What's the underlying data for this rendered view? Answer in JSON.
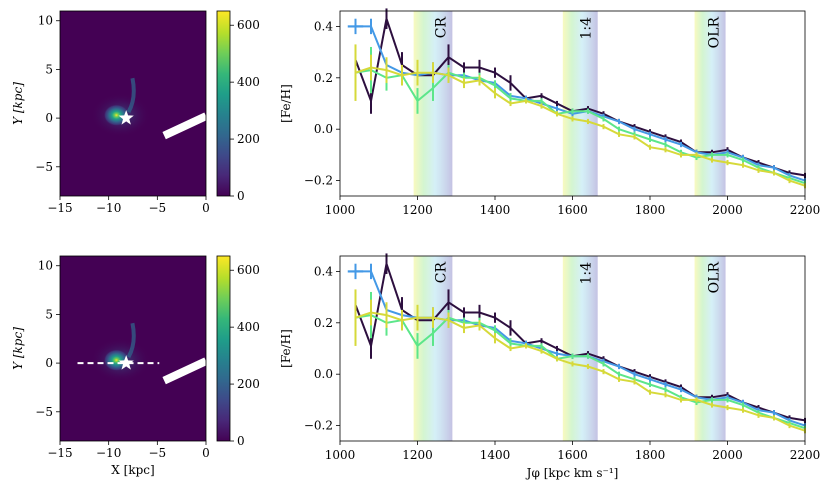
{
  "colors": {
    "viridis": [
      "#440154",
      "#482878",
      "#3e4989",
      "#31688e",
      "#26828e",
      "#1f9e89",
      "#35b779",
      "#6ece58",
      "#b5de2b",
      "#fde725"
    ],
    "background_map": "#440154",
    "bar": "#ffffff",
    "line_dark": "#2d0f3f",
    "line_blue": "#4499e6",
    "line_green": "#5ce68a",
    "line_yellow": "#d6d93a"
  },
  "chart_data": [
    {
      "type": "heatmap",
      "name": "map-top",
      "xlabel": "",
      "ylabel": "Y [kpc]",
      "xlim": [
        -15,
        0
      ],
      "ylim": [
        -8,
        11
      ],
      "xticks": [
        "−15",
        "−10",
        "−5",
        "0"
      ],
      "yticks": [
        "−5",
        "0",
        "5",
        "10"
      ],
      "colorbar": {
        "range": [
          0,
          650
        ],
        "ticks": [
          "0",
          "200",
          "400",
          "600"
        ]
      },
      "sun_marker": {
        "x": -8.2,
        "y": 0
      },
      "peak_density": {
        "x": -9.2,
        "y": 0.3
      },
      "bar": {
        "x1": -4.3,
        "y1": -1.8,
        "x2": 0,
        "y2": 0.2
      },
      "dashed_line": null
    },
    {
      "type": "heatmap",
      "name": "map-bottom",
      "xlabel": "X [kpc]",
      "ylabel": "Y [kpc]",
      "xlim": [
        -15,
        0
      ],
      "ylim": [
        -8,
        11
      ],
      "xticks": [
        "−15",
        "−10",
        "−5",
        "0"
      ],
      "yticks": [
        "−5",
        "0",
        "5",
        "10"
      ],
      "colorbar": {
        "range": [
          0,
          650
        ],
        "ticks": [
          "0",
          "200",
          "400",
          "600"
        ]
      },
      "sun_marker": {
        "x": -8.2,
        "y": 0
      },
      "peak_density": {
        "x": -9.2,
        "y": 0.3
      },
      "bar": {
        "x1": -4.3,
        "y1": -1.8,
        "x2": 0,
        "y2": 0.2
      },
      "dashed_line": {
        "x1": -13.2,
        "x2": -4.8,
        "y": 0
      }
    },
    {
      "type": "line",
      "name": "gradient-top",
      "xlabel": "",
      "ylabel": "[Fe/H]",
      "xlim": [
        1000,
        2200
      ],
      "ylim": [
        -0.26,
        0.46
      ],
      "xticks": [
        1000,
        1200,
        1400,
        1600,
        1800,
        2000,
        2200
      ],
      "yticks": [
        -0.2,
        0.0,
        0.2,
        0.4
      ],
      "ytick_labels": [
        "−0.2",
        "0.0",
        "0.2",
        "0.4"
      ],
      "resonances": [
        {
          "label": "CR",
          "x0": 1190,
          "x1": 1290
        },
        {
          "label": "1:4",
          "x0": 1575,
          "x1": 1665
        },
        {
          "label": "OLR",
          "x0": 1915,
          "x1": 1995
        }
      ],
      "x": [
        1040,
        1080,
        1120,
        1160,
        1200,
        1240,
        1280,
        1320,
        1360,
        1400,
        1440,
        1480,
        1520,
        1560,
        1600,
        1640,
        1680,
        1720,
        1760,
        1800,
        1840,
        1880,
        1920,
        1960,
        2000,
        2040,
        2080,
        2120,
        2160,
        2200
      ],
      "series": [
        {
          "name": "dark",
          "color_key": "line_dark",
          "values": [
            0.27,
            0.11,
            0.43,
            0.25,
            0.21,
            0.21,
            0.28,
            0.24,
            0.24,
            0.22,
            0.18,
            0.12,
            0.13,
            0.1,
            0.07,
            0.08,
            0.06,
            0.03,
            0.01,
            -0.01,
            -0.03,
            -0.05,
            -0.09,
            -0.09,
            -0.08,
            -0.11,
            -0.13,
            -0.15,
            -0.17,
            -0.18
          ],
          "errors": [
            0.04,
            0.05,
            0.04,
            0.05,
            0.04,
            0.05,
            0.05,
            0.02,
            0.03,
            0.02,
            0.03,
            0.01,
            0.01,
            0.01,
            0.01,
            0.01,
            0.01,
            0.01,
            0.01,
            0.01,
            0.01,
            0.01,
            0.01,
            0.01,
            0.01,
            0.01,
            0.01,
            0.01,
            0.01,
            0.01
          ]
        },
        {
          "name": "blue",
          "color_key": "line_blue",
          "values": [
            0.4,
            0.4,
            0.25,
            0.22,
            0.21,
            0.22,
            0.21,
            0.21,
            0.19,
            0.18,
            0.13,
            0.12,
            0.1,
            0.08,
            0.06,
            0.07,
            0.05,
            0.03,
            0.0,
            -0.02,
            -0.04,
            -0.06,
            -0.09,
            -0.1,
            -0.09,
            -0.11,
            -0.14,
            -0.15,
            -0.18,
            -0.2
          ],
          "errors": [
            0.03,
            0.03,
            0.02,
            0.02,
            0.02,
            0.02,
            0.02,
            0.01,
            0.01,
            0.01,
            0.01,
            0.01,
            0.01,
            0.01,
            0.01,
            0.01,
            0.01,
            0.01,
            0.01,
            0.01,
            0.01,
            0.01,
            0.01,
            0.01,
            0.01,
            0.01,
            0.01,
            0.01,
            0.01,
            0.01
          ],
          "xerr0": 20
        },
        {
          "name": "green",
          "color_key": "line_green",
          "values": [
            0.22,
            0.23,
            0.2,
            0.21,
            0.11,
            0.16,
            0.22,
            0.2,
            0.2,
            0.17,
            0.12,
            0.11,
            0.11,
            0.06,
            0.07,
            0.07,
            0.04,
            0.0,
            -0.02,
            -0.04,
            -0.06,
            -0.09,
            -0.11,
            -0.1,
            -0.1,
            -0.12,
            -0.15,
            -0.17,
            -0.19,
            -0.21
          ],
          "errors": [
            0.04,
            0.09,
            0.05,
            0.04,
            0.05,
            0.05,
            0.03,
            0.02,
            0.02,
            0.02,
            0.02,
            0.01,
            0.01,
            0.01,
            0.01,
            0.01,
            0.01,
            0.01,
            0.01,
            0.01,
            0.01,
            0.01,
            0.01,
            0.01,
            0.01,
            0.01,
            0.01,
            0.01,
            0.01,
            0.01
          ]
        },
        {
          "name": "yellow",
          "color_key": "line_yellow",
          "values": [
            0.22,
            0.24,
            0.23,
            0.21,
            0.22,
            0.22,
            0.21,
            0.18,
            0.19,
            0.14,
            0.1,
            0.11,
            0.09,
            0.06,
            0.04,
            0.03,
            0.01,
            -0.02,
            -0.03,
            -0.07,
            -0.08,
            -0.1,
            -0.1,
            -0.12,
            -0.13,
            -0.14,
            -0.16,
            -0.17,
            -0.2,
            -0.22
          ],
          "errors": [
            0.11,
            0.05,
            0.05,
            0.04,
            0.05,
            0.04,
            0.03,
            0.02,
            0.02,
            0.02,
            0.01,
            0.01,
            0.01,
            0.01,
            0.01,
            0.01,
            0.01,
            0.01,
            0.01,
            0.01,
            0.01,
            0.01,
            0.01,
            0.01,
            0.01,
            0.01,
            0.01,
            0.01,
            0.01,
            0.01
          ]
        }
      ]
    },
    {
      "type": "line",
      "name": "gradient-bottom",
      "xlabel": "Jφ [kpc km s⁻¹]",
      "ylabel": "[Fe/H]",
      "xlim": [
        1000,
        2200
      ],
      "ylim": [
        -0.26,
        0.46
      ],
      "xticks": [
        1000,
        1200,
        1400,
        1600,
        1800,
        2000,
        2200
      ],
      "yticks": [
        -0.2,
        0.0,
        0.2,
        0.4
      ],
      "ytick_labels": [
        "−0.2",
        "0.0",
        "0.2",
        "0.4"
      ],
      "resonances": [
        {
          "label": "CR",
          "x0": 1190,
          "x1": 1290
        },
        {
          "label": "1:4",
          "x0": 1575,
          "x1": 1665
        },
        {
          "label": "OLR",
          "x0": 1915,
          "x1": 1995
        }
      ],
      "x": [
        1040,
        1080,
        1120,
        1160,
        1200,
        1240,
        1280,
        1320,
        1360,
        1400,
        1440,
        1480,
        1520,
        1560,
        1600,
        1640,
        1680,
        1720,
        1760,
        1800,
        1840,
        1880,
        1920,
        1960,
        2000,
        2040,
        2080,
        2120,
        2160,
        2200
      ],
      "series": [
        {
          "name": "dark",
          "color_key": "line_dark",
          "values": [
            0.27,
            0.11,
            0.43,
            0.25,
            0.21,
            0.21,
            0.28,
            0.24,
            0.24,
            0.22,
            0.18,
            0.12,
            0.13,
            0.1,
            0.07,
            0.08,
            0.06,
            0.03,
            0.01,
            -0.01,
            -0.03,
            -0.05,
            -0.09,
            -0.09,
            -0.08,
            -0.11,
            -0.13,
            -0.15,
            -0.17,
            -0.18
          ],
          "errors": [
            0.04,
            0.05,
            0.04,
            0.05,
            0.04,
            0.05,
            0.05,
            0.02,
            0.03,
            0.02,
            0.03,
            0.01,
            0.01,
            0.01,
            0.01,
            0.01,
            0.01,
            0.01,
            0.01,
            0.01,
            0.01,
            0.01,
            0.01,
            0.01,
            0.01,
            0.01,
            0.01,
            0.01,
            0.01,
            0.01
          ]
        },
        {
          "name": "blue",
          "color_key": "line_blue",
          "values": [
            0.4,
            0.4,
            0.25,
            0.23,
            0.22,
            0.22,
            0.21,
            0.21,
            0.19,
            0.18,
            0.13,
            0.12,
            0.1,
            0.08,
            0.07,
            0.07,
            0.05,
            0.03,
            0.0,
            -0.02,
            -0.04,
            -0.06,
            -0.09,
            -0.1,
            -0.09,
            -0.11,
            -0.14,
            -0.15,
            -0.18,
            -0.2
          ],
          "errors": [
            0.03,
            0.03,
            0.02,
            0.02,
            0.02,
            0.02,
            0.02,
            0.01,
            0.01,
            0.01,
            0.01,
            0.01,
            0.01,
            0.01,
            0.01,
            0.01,
            0.01,
            0.01,
            0.01,
            0.01,
            0.01,
            0.01,
            0.01,
            0.01,
            0.01,
            0.01,
            0.01,
            0.01,
            0.01,
            0.01
          ],
          "xerr0": 20
        },
        {
          "name": "green",
          "color_key": "line_green",
          "values": [
            0.22,
            0.23,
            0.2,
            0.21,
            0.11,
            0.16,
            0.22,
            0.2,
            0.2,
            0.17,
            0.12,
            0.11,
            0.11,
            0.06,
            0.07,
            0.07,
            0.04,
            0.0,
            -0.02,
            -0.04,
            -0.06,
            -0.09,
            -0.11,
            -0.1,
            -0.1,
            -0.12,
            -0.15,
            -0.17,
            -0.19,
            -0.21
          ],
          "errors": [
            0.04,
            0.09,
            0.05,
            0.04,
            0.05,
            0.05,
            0.03,
            0.02,
            0.02,
            0.02,
            0.02,
            0.01,
            0.01,
            0.01,
            0.01,
            0.01,
            0.01,
            0.01,
            0.01,
            0.01,
            0.01,
            0.01,
            0.01,
            0.01,
            0.01,
            0.01,
            0.01,
            0.01,
            0.01,
            0.01
          ]
        },
        {
          "name": "yellow",
          "color_key": "line_yellow",
          "values": [
            0.22,
            0.24,
            0.23,
            0.21,
            0.22,
            0.22,
            0.21,
            0.18,
            0.19,
            0.14,
            0.1,
            0.11,
            0.09,
            0.06,
            0.04,
            0.03,
            0.01,
            -0.02,
            -0.03,
            -0.07,
            -0.08,
            -0.1,
            -0.1,
            -0.12,
            -0.13,
            -0.14,
            -0.16,
            -0.17,
            -0.2,
            -0.22
          ],
          "errors": [
            0.11,
            0.05,
            0.05,
            0.04,
            0.05,
            0.04,
            0.03,
            0.02,
            0.02,
            0.02,
            0.01,
            0.01,
            0.01,
            0.01,
            0.01,
            0.01,
            0.01,
            0.01,
            0.01,
            0.01,
            0.01,
            0.01,
            0.01,
            0.01,
            0.01,
            0.01,
            0.01,
            0.01,
            0.01,
            0.01
          ]
        }
      ]
    }
  ]
}
